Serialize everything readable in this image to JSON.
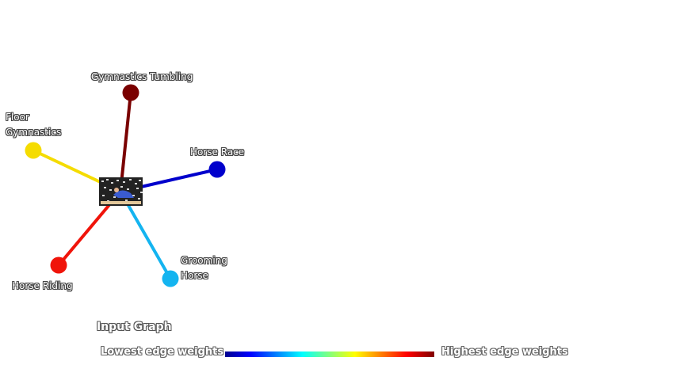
{
  "graph": {
    "title": "Input Graph",
    "center_node": {
      "image_name": "gymnastics-photo-thumbnail",
      "image_colors": {
        "sky": "#d8d8d8",
        "dark": "#222222",
        "figure": "#3a5bd0",
        "beam": "#e3c79a"
      }
    },
    "nodes": [
      {
        "id": "gymnastics-tumbling",
        "label_lines": [
          "Gymnastics Tumbling"
        ],
        "color": "#7a0000",
        "edge_weight": 1.0
      },
      {
        "id": "floor-gymnastics",
        "label_lines": [
          "Floor",
          "Gymnastics"
        ],
        "color": "#f5dc00",
        "edge_weight": 0.62
      },
      {
        "id": "horse-race",
        "label_lines": [
          "Horse Race"
        ],
        "color": "#0000cc",
        "edge_weight": 0.05
      },
      {
        "id": "grooming-horse",
        "label_lines": [
          "Grooming",
          "Horse"
        ],
        "color": "#14b4f0",
        "edge_weight": 0.33
      },
      {
        "id": "horse-riding",
        "label_lines": [
          "Horse Riding"
        ],
        "color": "#f0140a",
        "edge_weight": 0.85
      }
    ]
  },
  "legend": {
    "low_label": "Lowest edge weights",
    "high_label": "Highest edge weights",
    "colormap": [
      "#00008f",
      "#0000ff",
      "#00ffff",
      "#ffff00",
      "#ff0000",
      "#800000"
    ]
  }
}
